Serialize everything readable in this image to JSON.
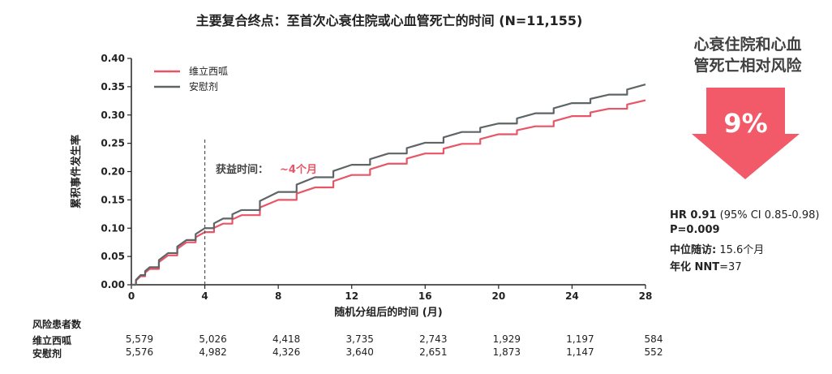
{
  "chart_data": {
    "type": "line",
    "title": "主要复合终点：至首次心衰住院或心血管死亡的时间 (N=11,155)",
    "xlabel": "随机分组后的时间 (月)",
    "ylabel": "累积事件发生率",
    "xlim": [
      0,
      28
    ],
    "ylim": [
      0,
      0.4
    ],
    "xticks": [
      0,
      4,
      8,
      12,
      16,
      20,
      24,
      28
    ],
    "yticks": [
      "0.00",
      "0.05",
      "0.10",
      "0.15",
      "0.20",
      "0.25",
      "0.30",
      "0.35",
      "0.40"
    ],
    "grid": false,
    "legend_position": "top-left",
    "series": [
      {
        "name": "维立西呱",
        "color": "#e85566",
        "x": [
          0,
          0.5,
          1,
          2,
          3,
          4,
          5,
          6,
          8,
          10,
          12,
          14,
          16,
          18,
          20,
          22,
          24,
          26,
          28
        ],
        "y": [
          0,
          0.015,
          0.028,
          0.052,
          0.075,
          0.093,
          0.108,
          0.123,
          0.15,
          0.172,
          0.194,
          0.214,
          0.232,
          0.249,
          0.266,
          0.28,
          0.298,
          0.311,
          0.326
        ]
      },
      {
        "name": "安慰剂",
        "color": "#5f6466",
        "x": [
          0,
          0.5,
          1,
          2,
          3,
          4,
          5,
          6,
          8,
          10,
          12,
          14,
          16,
          18,
          20,
          22,
          24,
          26,
          28
        ],
        "y": [
          0,
          0.017,
          0.031,
          0.056,
          0.079,
          0.1,
          0.117,
          0.132,
          0.164,
          0.19,
          0.212,
          0.232,
          0.251,
          0.27,
          0.285,
          0.303,
          0.321,
          0.336,
          0.354
        ]
      }
    ],
    "annotations": {
      "vline_x": 4,
      "benefit_label": "获益时间：",
      "benefit_value": "~4个月"
    }
  },
  "risk_table": {
    "title": "风险患者数",
    "rows": [
      {
        "label": "维立西呱",
        "values": [
          "5,579",
          "5,026",
          "4,418",
          "3,735",
          "2,743",
          "1,929",
          "1,197",
          "584"
        ]
      },
      {
        "label": "安慰剂",
        "values": [
          "5,576",
          "4,982",
          "4,326",
          "3,640",
          "2,651",
          "1,873",
          "1,147",
          "552"
        ]
      }
    ]
  },
  "side_panel": {
    "title_line1": "心衰住院和心血",
    "title_line2": "管死亡相对风险",
    "reduction": "9%",
    "arrow_color": "#f25a6a",
    "hr_label": "HR 0.91",
    "hr_ci": " (95% CI 0.85-0.98)",
    "p_value": "P=0.009",
    "followup_label": "中位随访:",
    "followup_value": " 15.6个月",
    "nnt_label": "年化 NNT",
    "nnt_value": "=37"
  }
}
